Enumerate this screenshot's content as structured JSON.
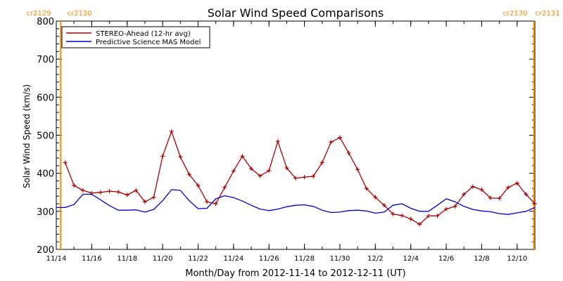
{
  "chart_data": {
    "type": "line",
    "title": "Solar Wind Speed Comparisons",
    "xlabel": "Month/Day from 2012-11-14 to 2012-12-11 (UT)",
    "ylabel": "Solar Wind Speed (km/s)",
    "xlim": [
      0,
      27
    ],
    "ylim": [
      200,
      800
    ],
    "y_ticks": [
      200,
      300,
      400,
      500,
      600,
      700,
      800
    ],
    "x_ticks": [
      {
        "x": 0,
        "label": "11/14"
      },
      {
        "x": 2,
        "label": "11/16"
      },
      {
        "x": 4,
        "label": "11/18"
      },
      {
        "x": 6,
        "label": "11/20"
      },
      {
        "x": 8,
        "label": "11/22"
      },
      {
        "x": 10,
        "label": "11/24"
      },
      {
        "x": 12,
        "label": "11/26"
      },
      {
        "x": 14,
        "label": "11/28"
      },
      {
        "x": 16,
        "label": "11/30"
      },
      {
        "x": 18,
        "label": "12/2"
      },
      {
        "x": 20,
        "label": "12/4"
      },
      {
        "x": 22,
        "label": "12/6"
      },
      {
        "x": 24,
        "label": "12/8"
      },
      {
        "x": 26,
        "label": "12/10"
      }
    ],
    "carrington_markers": [
      {
        "x": 0.25,
        "label_left": "cr2129",
        "label_right": "cr2130",
        "side": "left"
      },
      {
        "x": 26.95,
        "label_left": "cr2130",
        "label_right": "cr2131",
        "side": "right"
      }
    ],
    "legend": {
      "placement": "top-left"
    },
    "series": [
      {
        "name": "STEREO-Ahead (12-hr avg)",
        "color": "#aa0000",
        "markers": true,
        "points": [
          [
            0.5,
            428
          ],
          [
            1.0,
            368
          ],
          [
            1.5,
            355
          ],
          [
            2.0,
            348
          ],
          [
            2.5,
            350
          ],
          [
            3.0,
            353
          ],
          [
            3.5,
            351
          ],
          [
            4.0,
            343
          ],
          [
            4.5,
            355
          ],
          [
            5.0,
            325
          ],
          [
            5.5,
            337
          ],
          [
            6.0,
            445
          ],
          [
            6.5,
            510
          ],
          [
            7.0,
            443
          ],
          [
            7.5,
            397
          ],
          [
            8.0,
            368
          ],
          [
            8.5,
            325
          ],
          [
            9.0,
            320
          ],
          [
            9.5,
            363
          ],
          [
            10.0,
            406
          ],
          [
            10.5,
            445
          ],
          [
            11.0,
            412
          ],
          [
            11.5,
            393
          ],
          [
            12.0,
            407
          ],
          [
            12.5,
            484
          ],
          [
            13.0,
            414
          ],
          [
            13.5,
            387
          ],
          [
            14.0,
            390
          ],
          [
            14.5,
            392
          ],
          [
            15.0,
            428
          ],
          [
            15.5,
            482
          ],
          [
            16.0,
            494
          ],
          [
            16.5,
            453
          ],
          [
            17.0,
            410
          ],
          [
            17.5,
            360
          ],
          [
            18.0,
            337
          ],
          [
            18.5,
            316
          ],
          [
            19.0,
            293
          ],
          [
            19.5,
            289
          ],
          [
            20.0,
            280
          ],
          [
            20.5,
            266
          ],
          [
            21.0,
            288
          ],
          [
            21.5,
            288
          ],
          [
            22.0,
            306
          ],
          [
            22.5,
            313
          ],
          [
            23.0,
            345
          ],
          [
            23.5,
            365
          ],
          [
            24.0,
            357
          ],
          [
            24.5,
            335
          ],
          [
            25.0,
            334
          ],
          [
            25.5,
            363
          ],
          [
            26.0,
            374
          ],
          [
            26.5,
            345
          ],
          [
            27.0,
            320
          ]
        ]
      },
      {
        "name": "Predictive Science MAS Model",
        "color": "#0000cc",
        "markers": false,
        "points": [
          [
            0.0,
            310
          ],
          [
            0.5,
            310
          ],
          [
            1.0,
            318
          ],
          [
            1.5,
            345
          ],
          [
            2.0,
            345
          ],
          [
            2.5,
            330
          ],
          [
            3.0,
            315
          ],
          [
            3.5,
            303
          ],
          [
            4.0,
            303
          ],
          [
            4.5,
            304
          ],
          [
            5.0,
            298
          ],
          [
            5.5,
            305
          ],
          [
            6.0,
            328
          ],
          [
            6.5,
            357
          ],
          [
            7.0,
            355
          ],
          [
            7.5,
            328
          ],
          [
            8.0,
            307
          ],
          [
            8.5,
            308
          ],
          [
            9.0,
            333
          ],
          [
            9.5,
            341
          ],
          [
            10.0,
            336
          ],
          [
            10.5,
            327
          ],
          [
            11.0,
            316
          ],
          [
            11.5,
            306
          ],
          [
            12.0,
            302
          ],
          [
            12.5,
            306
          ],
          [
            13.0,
            312
          ],
          [
            13.5,
            316
          ],
          [
            14.0,
            317
          ],
          [
            14.5,
            313
          ],
          [
            15.0,
            303
          ],
          [
            15.5,
            297
          ],
          [
            16.0,
            298
          ],
          [
            16.5,
            302
          ],
          [
            17.0,
            303
          ],
          [
            17.5,
            301
          ],
          [
            18.0,
            295
          ],
          [
            18.5,
            298
          ],
          [
            19.0,
            316
          ],
          [
            19.5,
            320
          ],
          [
            20.0,
            308
          ],
          [
            20.5,
            300
          ],
          [
            21.0,
            300
          ],
          [
            21.5,
            316
          ],
          [
            22.0,
            333
          ],
          [
            22.5,
            325
          ],
          [
            23.0,
            313
          ],
          [
            23.5,
            305
          ],
          [
            24.0,
            301
          ],
          [
            24.5,
            299
          ],
          [
            25.0,
            294
          ],
          [
            25.5,
            292
          ],
          [
            26.0,
            296
          ],
          [
            26.5,
            300
          ],
          [
            27.0,
            310
          ]
        ]
      }
    ]
  }
}
